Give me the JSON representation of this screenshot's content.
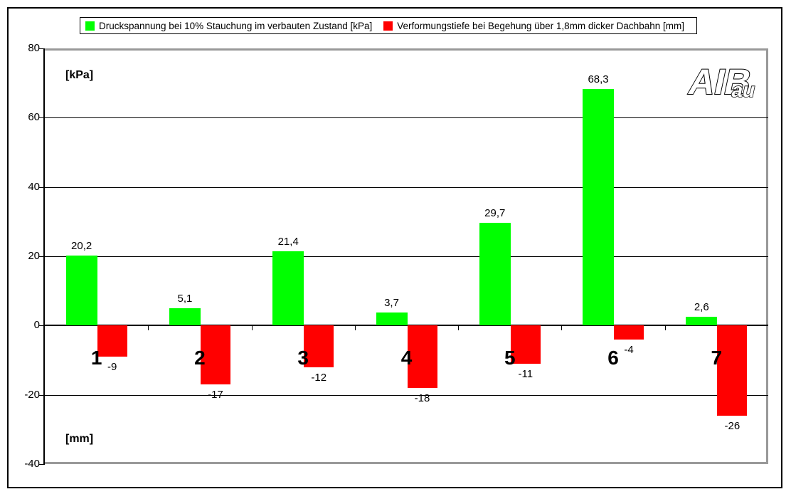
{
  "chart_data": {
    "type": "bar",
    "title": "",
    "categories": [
      "1",
      "2",
      "3",
      "4",
      "5",
      "6",
      "7"
    ],
    "series": [
      {
        "name": "Druckspannung bei 10% Stauchung im verbauten Zustand [kPa]",
        "color": "#00ff00",
        "values": [
          20.2,
          5.1,
          21.4,
          3.7,
          29.7,
          68.3,
          2.6
        ],
        "labels": [
          "20,2",
          "5,1",
          "21,4",
          "3,7",
          "29,7",
          "68,3",
          "2,6"
        ]
      },
      {
        "name": "Verformungstiefe bei Begehung über 1,8mm dicker Dachbahn [mm]",
        "color": "#ff0000",
        "values": [
          -9,
          -17,
          -12,
          -18,
          -11,
          -4,
          -26
        ],
        "labels": [
          "-9",
          "-17",
          "-12",
          "-18",
          "-11",
          "-4",
          "-26"
        ]
      }
    ],
    "ylim": [
      -40,
      80
    ],
    "yticks": [
      80,
      60,
      40,
      20,
      0,
      -20,
      -40
    ],
    "ytick_labels": [
      "80",
      "60",
      "40",
      "20",
      "0",
      "-20",
      "-40"
    ],
    "y_axis_unit_top": "[kPa]",
    "y_axis_unit_bottom": "[mm]",
    "grid": true,
    "legend_position": "top"
  },
  "logo": {
    "text_main": "AIB",
    "text_sub": "au"
  }
}
